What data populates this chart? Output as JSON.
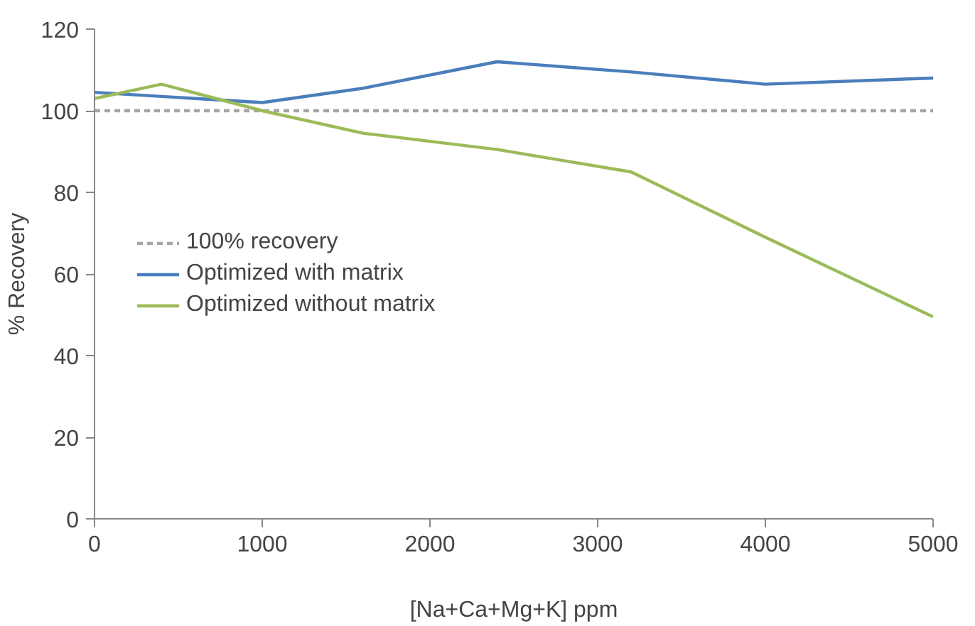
{
  "chart_data": {
    "type": "line",
    "xlabel": "[Na+Ca+Mg+K] ppm",
    "ylabel": "% Recovery",
    "x": [
      0,
      400,
      1000,
      1600,
      2400,
      3200,
      4000,
      5000
    ],
    "series": [
      {
        "name": "100% recovery",
        "color": "#a6a6a6",
        "line_style": "dashed",
        "x": [
          0,
          5000
        ],
        "values": [
          100,
          100
        ]
      },
      {
        "name": "Optimized with matrix",
        "color": "#4a7ebb",
        "values": [
          104.5,
          103.5,
          102,
          105.5,
          112,
          109.5,
          106.5,
          108
        ]
      },
      {
        "name": "Optimized without matrix",
        "color": "#9bbb59",
        "values": [
          103,
          106.5,
          100,
          94.5,
          90.5,
          85,
          69,
          49.5
        ]
      }
    ],
    "xlim": [
      0,
      5000
    ],
    "xticks": [
      0,
      1000,
      2000,
      3000,
      4000,
      5000
    ],
    "ylim": [
      0,
      120
    ],
    "yticks": [
      0,
      20,
      40,
      60,
      80,
      100,
      120
    ],
    "grid": false,
    "legend": "left",
    "marker": "none",
    "line_style": "solid"
  }
}
